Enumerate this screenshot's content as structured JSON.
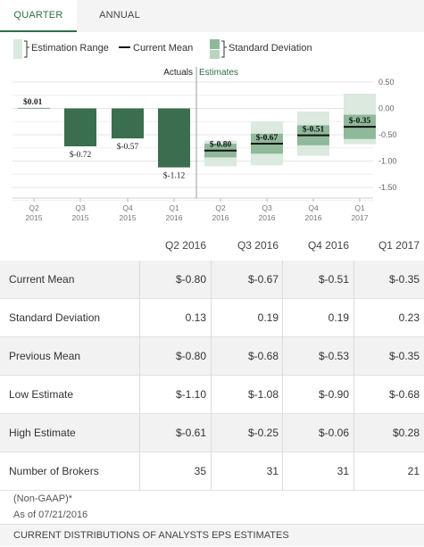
{
  "tabs": [
    {
      "label": "QUARTER",
      "active": true
    },
    {
      "label": "ANNUAL",
      "active": false
    }
  ],
  "chart_data": {
    "type": "bar",
    "legend": {
      "range_label": "Estimation Range",
      "mean_label": "Current Mean",
      "sd_label": "Standard Deviation",
      "placement": "top-left"
    },
    "section_labels": {
      "actuals": "Actuals",
      "estimates": "Estimates"
    },
    "y_axis": {
      "ticks": [
        0.5,
        0.0,
        -0.5,
        -1.0,
        -1.5
      ],
      "tick_labels": [
        "0.50",
        "0.00",
        "-0.50",
        "-1.00",
        "-1.50"
      ],
      "ylim": [
        -1.75,
        0.65
      ],
      "position": "right",
      "grid": true
    },
    "categories": [
      {
        "q": "Q2",
        "y": "2015"
      },
      {
        "q": "Q3",
        "y": "2015"
      },
      {
        "q": "Q4",
        "y": "2015"
      },
      {
        "q": "Q1",
        "y": "2016"
      },
      {
        "q": "Q2",
        "y": "2016"
      },
      {
        "q": "Q3",
        "y": "2016"
      },
      {
        "q": "Q4",
        "y": "2016"
      },
      {
        "q": "Q1",
        "y": "2017"
      }
    ],
    "actuals": [
      {
        "value": 0.01,
        "label": "$0.01"
      },
      {
        "value": -0.72,
        "label": "$-0.72"
      },
      {
        "value": -0.57,
        "label": "$-0.57"
      },
      {
        "value": -1.12,
        "label": "$-1.12"
      }
    ],
    "estimates": [
      {
        "mean": -0.8,
        "label": "$-0.80",
        "low": -1.1,
        "high": -0.61,
        "sd": 0.13
      },
      {
        "mean": -0.67,
        "label": "$-0.67",
        "low": -1.08,
        "high": -0.25,
        "sd": 0.19
      },
      {
        "mean": -0.51,
        "label": "$-0.51",
        "low": -0.9,
        "high": -0.06,
        "sd": 0.19
      },
      {
        "mean": -0.35,
        "label": "$-0.35",
        "low": -0.68,
        "high": 0.28,
        "sd": 0.23
      }
    ],
    "colors": {
      "actual": "#3a6e4e",
      "range": "#dbe9de",
      "sd": "#8fb99a",
      "mean": "#111111",
      "grid": "#e4e4e4"
    }
  },
  "table": {
    "columns": [
      "Q2 2016",
      "Q3 2016",
      "Q4 2016",
      "Q1 2017"
    ],
    "rows": [
      {
        "label": "Current Mean",
        "values": [
          "$-0.80",
          "$-0.67",
          "$-0.51",
          "$-0.35"
        ]
      },
      {
        "label": "Standard Deviation",
        "values": [
          "0.13",
          "0.19",
          "0.19",
          "0.23"
        ]
      },
      {
        "label": "Previous Mean",
        "values": [
          "$-0.80",
          "$-0.68",
          "$-0.53",
          "$-0.35"
        ]
      },
      {
        "label": "Low Estimate",
        "values": [
          "$-1.10",
          "$-1.08",
          "$-0.90",
          "$-0.68"
        ]
      },
      {
        "label": "High Estimate",
        "values": [
          "$-0.61",
          "$-0.25",
          "$-0.06",
          "$0.28"
        ]
      },
      {
        "label": "Number of Brokers",
        "values": [
          "35",
          "31",
          "31",
          "21"
        ]
      }
    ]
  },
  "notes": {
    "gaap": "(Non-GAAP)*",
    "as_of": "As of 07/21/2016"
  },
  "footer": {
    "title": "CURRENT DISTRIBUTIONS OF ANALYSTS EPS ESTIMATES"
  }
}
